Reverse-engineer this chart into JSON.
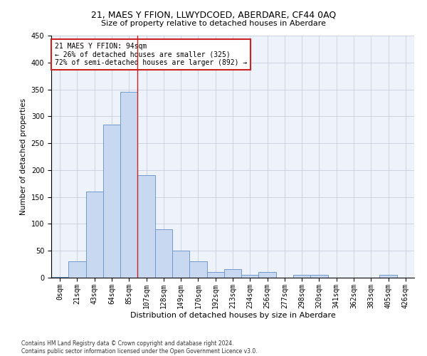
{
  "title": "21, MAES Y FFION, LLWYDCOED, ABERDARE, CF44 0AQ",
  "subtitle": "Size of property relative to detached houses in Aberdare",
  "xlabel": "Distribution of detached houses by size in Aberdare",
  "ylabel": "Number of detached properties",
  "footnote1": "Contains HM Land Registry data © Crown copyright and database right 2024.",
  "footnote2": "Contains public sector information licensed under the Open Government Licence v3.0.",
  "annotation_line1": "21 MAES Y FFION: 94sqm",
  "annotation_line2": "← 26% of detached houses are smaller (325)",
  "annotation_line3": "72% of semi-detached houses are larger (892) →",
  "bar_labels": [
    "0sqm",
    "21sqm",
    "43sqm",
    "64sqm",
    "85sqm",
    "107sqm",
    "128sqm",
    "149sqm",
    "170sqm",
    "192sqm",
    "213sqm",
    "234sqm",
    "256sqm",
    "277sqm",
    "298sqm",
    "320sqm",
    "341sqm",
    "362sqm",
    "383sqm",
    "405sqm",
    "426sqm"
  ],
  "bar_values": [
    1,
    30,
    160,
    285,
    345,
    190,
    90,
    50,
    30,
    11,
    16,
    5,
    10,
    0,
    5,
    5,
    0,
    0,
    0,
    5,
    0
  ],
  "bar_color": "#c8d8f0",
  "bar_edgecolor": "#7099cc",
  "vline_x": 4.5,
  "vline_color": "#cc2222",
  "background_color": "#eef2fb",
  "grid_color": "#c0c8d8",
  "ylim": [
    0,
    450
  ],
  "yticks": [
    0,
    50,
    100,
    150,
    200,
    250,
    300,
    350,
    400,
    450
  ],
  "title_fontsize": 9,
  "subtitle_fontsize": 8,
  "xlabel_fontsize": 8,
  "ylabel_fontsize": 7.5,
  "tick_fontsize": 7,
  "annotation_fontsize": 7,
  "footnote_fontsize": 5.5
}
